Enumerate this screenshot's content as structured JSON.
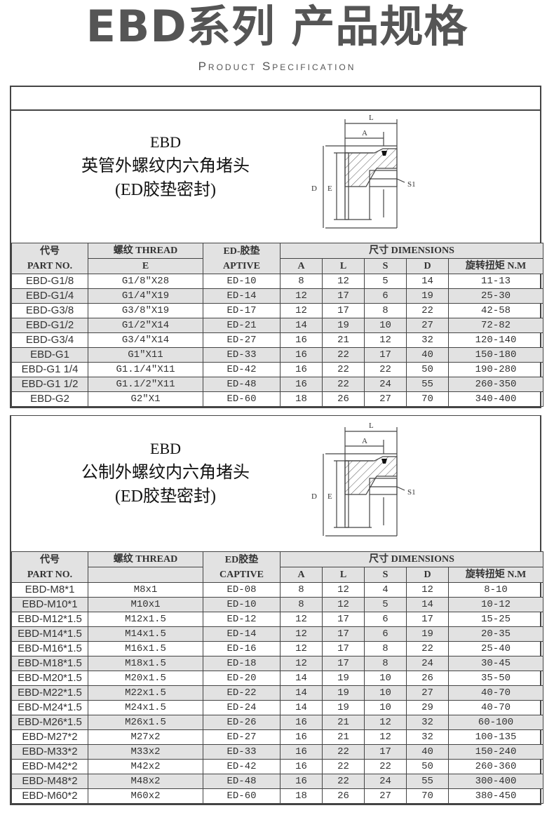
{
  "header": {
    "title": "EBD系列 产品规格",
    "subtitle": "Product Specification"
  },
  "diagram_labels": {
    "L": "L",
    "A": "A",
    "D": "D",
    "E": "E",
    "S1": "S1"
  },
  "tables": [
    {
      "product": {
        "line1": "EBD",
        "line2": "英管外螺纹内六角堵头",
        "line3": "(ED胶垫密封)"
      },
      "headers": {
        "code": "代号",
        "part_no": "PART NO.",
        "thread": "螺纹 THREAD",
        "thread_sub": "E",
        "seal": "ED-胶垫",
        "seal_sub": "APTIVE",
        "dimensions": "尺寸 DIMENSIONS",
        "A": "A",
        "L": "L",
        "S": "S",
        "D": "D",
        "torque": "旋转扭矩 N.M"
      },
      "rows": [
        [
          "EBD-G1/8",
          "G1/8\"X28",
          "ED-10",
          "8",
          "12",
          "5",
          "14",
          "11-13"
        ],
        [
          "EBD-G1/4",
          "G1/4\"X19",
          "ED-14",
          "12",
          "17",
          "6",
          "19",
          "25-30"
        ],
        [
          "EBD-G3/8",
          "G3/8\"X19",
          "ED-17",
          "12",
          "17",
          "8",
          "22",
          "42-58"
        ],
        [
          "EBD-G1/2",
          "G1/2\"X14",
          "ED-21",
          "14",
          "19",
          "10",
          "27",
          "72-82"
        ],
        [
          "EBD-G3/4",
          "G3/4\"X14",
          "ED-27",
          "16",
          "21",
          "12",
          "32",
          "120-140"
        ],
        [
          "EBD-G1",
          "G1\"X11",
          "ED-33",
          "16",
          "22",
          "17",
          "40",
          "150-180"
        ],
        [
          "EBD-G1 1/4",
          "G1.1/4\"X11",
          "ED-42",
          "16",
          "22",
          "22",
          "50",
          "190-280"
        ],
        [
          "EBD-G1 1/2",
          "G1.1/2\"X11",
          "ED-48",
          "16",
          "22",
          "24",
          "55",
          "260-350"
        ],
        [
          "EBD-G2",
          "G2\"X1",
          "ED-60",
          "18",
          "26",
          "27",
          "70",
          "340-400"
        ]
      ]
    },
    {
      "product": {
        "line1": "EBD",
        "line2": "公制外螺纹内六角堵头",
        "line3": "(ED胶垫密封)"
      },
      "headers": {
        "code": "代号",
        "part_no": "PART NO.",
        "thread": "螺纹 THREAD",
        "thread_sub": "",
        "seal": "ED胶垫",
        "seal_sub": "CAPTIVE",
        "dimensions": "尺寸 DIMENSIONS",
        "A": "A",
        "L": "L",
        "S": "S",
        "D": "D",
        "torque": "旋转扭矩 N.M"
      },
      "rows": [
        [
          "EBD-M8*1",
          "M8x1",
          "ED-08",
          "8",
          "12",
          "4",
          "12",
          "8-10"
        ],
        [
          "EBD-M10*1",
          "M10x1",
          "ED-10",
          "8",
          "12",
          "5",
          "14",
          "10-12"
        ],
        [
          "EBD-M12*1.5",
          "M12x1.5",
          "ED-12",
          "12",
          "17",
          "6",
          "17",
          "15-25"
        ],
        [
          "EBD-M14*1.5",
          "M14x1.5",
          "ED-14",
          "12",
          "17",
          "6",
          "19",
          "20-35"
        ],
        [
          "EBD-M16*1.5",
          "M16x1.5",
          "ED-16",
          "12",
          "17",
          "8",
          "22",
          "25-40"
        ],
        [
          "EBD-M18*1.5",
          "M18x1.5",
          "ED-18",
          "12",
          "17",
          "8",
          "24",
          "30-45"
        ],
        [
          "EBD-M20*1.5",
          "M20x1.5",
          "ED-20",
          "14",
          "19",
          "10",
          "26",
          "35-50"
        ],
        [
          "EBD-M22*1.5",
          "M22x1.5",
          "ED-22",
          "14",
          "19",
          "10",
          "27",
          "40-70"
        ],
        [
          "EBD-M24*1.5",
          "M24x1.5",
          "ED-24",
          "14",
          "19",
          "10",
          "29",
          "40-70"
        ],
        [
          "EBD-M26*1.5",
          "M26x1.5",
          "ED-26",
          "16",
          "21",
          "12",
          "32",
          "60-100"
        ],
        [
          "EBD-M27*2",
          "M27x2",
          "ED-27",
          "16",
          "21",
          "12",
          "32",
          "100-135"
        ],
        [
          "EBD-M33*2",
          "M33x2",
          "ED-33",
          "16",
          "22",
          "17",
          "40",
          "150-240"
        ],
        [
          "EBD-M42*2",
          "M42x2",
          "ED-42",
          "16",
          "22",
          "22",
          "50",
          "260-360"
        ],
        [
          "EBD-M48*2",
          "M48x2",
          "ED-48",
          "16",
          "22",
          "24",
          "55",
          "300-400"
        ],
        [
          "EBD-M60*2",
          "M60x2",
          "ED-60",
          "18",
          "26",
          "27",
          "70",
          "380-450"
        ]
      ]
    }
  ]
}
